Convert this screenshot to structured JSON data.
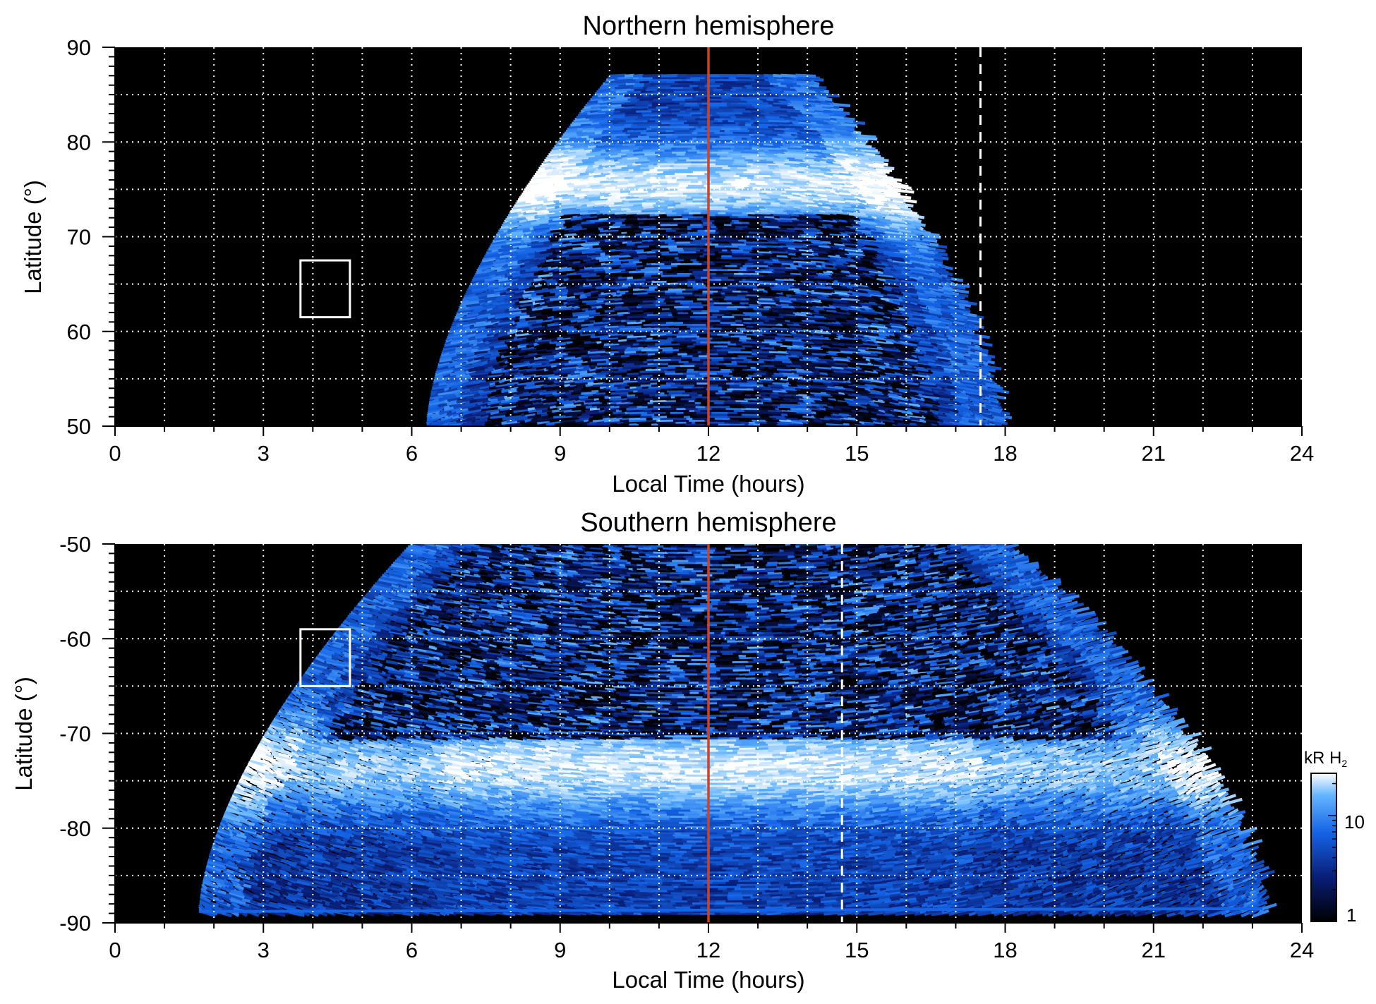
{
  "chart_data": [
    {
      "type": "heatmap",
      "title": "Northern hemisphere",
      "xlabel": "Local Time (hours)",
      "ylabel": "Latitude (°)",
      "xlim": [
        0,
        24
      ],
      "ylim": [
        50,
        90
      ],
      "xticks": [
        "0",
        "3",
        "6",
        "9",
        "12",
        "15",
        "18",
        "21",
        "24"
      ],
      "yticks": [
        "50",
        "60",
        "70",
        "80",
        "90"
      ],
      "grid": true,
      "noon_line_lt": 12,
      "dashed_line_lt": 17.5,
      "box": {
        "lt": [
          3.75,
          4.75
        ],
        "lat": [
          61.5,
          67.5
        ]
      },
      "coverage": {
        "lat_bottom": 50,
        "lt_start_bottom": 6.3,
        "lt_end_bottom": 17.8,
        "lat_top": 87,
        "lt_start_top": 10,
        "lt_end_top": 14
      },
      "oval": {
        "lat_peak": 75.5,
        "lat_width": 3.0,
        "lt_range": [
          6.5,
          17.5
        ]
      }
    },
    {
      "type": "heatmap",
      "title": "Southern hemisphere",
      "xlabel": "Local Time (hours)",
      "ylabel": "Latitude (°)",
      "xlim": [
        0,
        24
      ],
      "ylim": [
        -90,
        -50
      ],
      "xticks": [
        "0",
        "3",
        "6",
        "9",
        "12",
        "15",
        "18",
        "21",
        "24"
      ],
      "yticks": [
        "-90",
        "-80",
        "-70",
        "-60",
        "-50"
      ],
      "grid": true,
      "noon_line_lt": 12,
      "dashed_line_lt": 14.7,
      "box": {
        "lt": [
          3.75,
          4.75
        ],
        "lat": [
          -65,
          -59
        ]
      },
      "coverage": {
        "lat_bottom": -89,
        "lt_start_bottom": 1.7,
        "lt_end_bottom": 23.2,
        "lat_top": -50,
        "lt_start_top": 6,
        "lt_end_top": 18
      },
      "oval": {
        "lat_peak": -73.5,
        "lat_width": 3.5,
        "lt_range": [
          5.5,
          18.5
        ]
      }
    }
  ],
  "colorbar": {
    "unit": "kR H",
    "unit_subscript": "2",
    "ticks": [
      "1",
      "10"
    ],
    "scale": "log",
    "range": [
      1,
      25
    ],
    "colors": [
      "#000000",
      "#0a1e78",
      "#1464e6",
      "#64b4ff",
      "#ffffff"
    ]
  }
}
